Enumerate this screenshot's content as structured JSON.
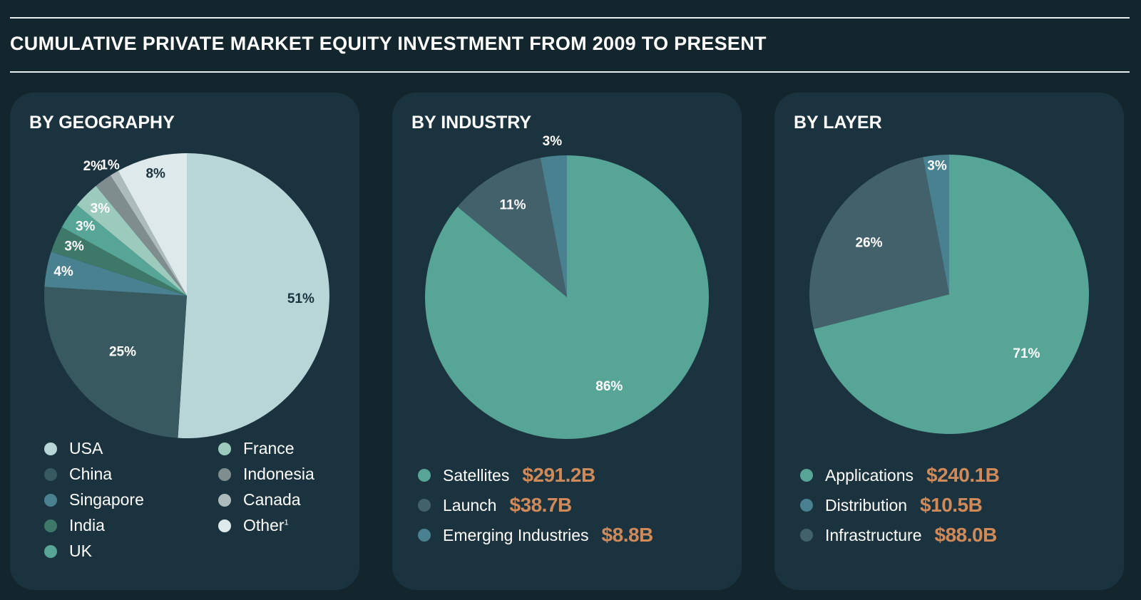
{
  "header": {
    "title": "CUMULATIVE PRIVATE MARKET EQUITY INVESTMENT FROM 2009 TO PRESENT"
  },
  "panels": [
    {
      "title": "BY GEOGRAPHY"
    },
    {
      "title": "BY INDUSTRY"
    },
    {
      "title": "BY LAYER"
    }
  ],
  "colors": {
    "background": "#13262e",
    "panel": "#1b333e",
    "value_accent": "#d08a5a"
  },
  "chart_data": [
    {
      "type": "pie",
      "title": "BY GEOGRAPHY",
      "slices": [
        {
          "label": "USA",
          "value": 51,
          "display": "51%",
          "color": "#b8d5d8",
          "text_color": "#1b333e"
        },
        {
          "label": "China",
          "value": 25,
          "display": "25%",
          "color": "#38595f",
          "text_color": "#ffffff"
        },
        {
          "label": "Singapore",
          "value": 4,
          "display": "4%",
          "color": "#4a8190",
          "text_color": "#ffffff"
        },
        {
          "label": "India",
          "value": 3,
          "display": "3%",
          "color": "#3d7868",
          "text_color": "#ffffff"
        },
        {
          "label": "UK",
          "value": 3,
          "display": "3%",
          "color": "#57a596",
          "text_color": "#ffffff"
        },
        {
          "label": "France",
          "value": 3,
          "display": "3%",
          "color": "#9ccbbe",
          "text_color": "#ffffff"
        },
        {
          "label": "Indonesia",
          "value": 2,
          "display": "2%",
          "color": "#7f8d8f",
          "text_color": "#ffffff"
        },
        {
          "label": "Canada",
          "value": 1,
          "display": "1%",
          "color": "#aebbbd",
          "text_color": "#ffffff"
        },
        {
          "label": "Other",
          "label_footnote": "1",
          "value": 8,
          "display": "8%",
          "color": "#dde9eb",
          "text_color": "#1b333e"
        }
      ]
    },
    {
      "type": "pie",
      "title": "BY INDUSTRY",
      "slices": [
        {
          "label": "Satellites",
          "value": 86,
          "display": "86%",
          "amount": "$291.2B",
          "color": "#57a596",
          "text_color": "#ffffff"
        },
        {
          "label": "Launch",
          "value": 11,
          "display": "11%",
          "amount": "$38.7B",
          "color": "#42616a",
          "text_color": "#ffffff"
        },
        {
          "label": "Emerging Industries",
          "value": 3,
          "display": "3%",
          "amount": "$8.8B",
          "color": "#4a8190",
          "text_color": "#ffffff"
        }
      ]
    },
    {
      "type": "pie",
      "title": "BY LAYER",
      "slices": [
        {
          "label": "Applications",
          "value": 71,
          "display": "71%",
          "amount": "$240.1B",
          "color": "#57a596",
          "text_color": "#ffffff"
        },
        {
          "label": "Infrastructure",
          "value": 26,
          "display": "26%",
          "amount": "$88.0B",
          "color": "#42616a",
          "text_color": "#ffffff"
        },
        {
          "label": "Distribution",
          "value": 3,
          "display": "3%",
          "amount": "$10.5B",
          "color": "#4a8190",
          "text_color": "#ffffff"
        }
      ],
      "legend_order": [
        "Applications",
        "Distribution",
        "Infrastructure"
      ]
    }
  ]
}
